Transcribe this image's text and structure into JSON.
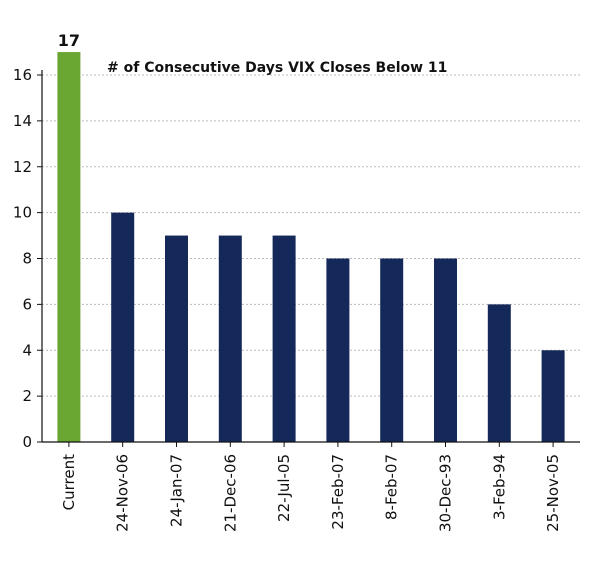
{
  "chart_data": {
    "type": "bar",
    "title": "# of Consecutive Days VIX Closes Below 11",
    "categories": [
      "Current",
      "24-Nov-06",
      "24-Jan-07",
      "21-Dec-06",
      "22-Jul-05",
      "23-Feb-07",
      "8-Feb-07",
      "30-Dec-93",
      "3-Feb-94",
      "25-Nov-05"
    ],
    "values": [
      17,
      10,
      9,
      9,
      9,
      8,
      8,
      8,
      6,
      4
    ],
    "data_labels": [
      "17",
      "",
      "",
      "",
      "",
      "",
      "",
      "",
      "",
      ""
    ],
    "xlabel": "",
    "ylabel": "",
    "ylim": [
      0,
      16
    ],
    "yticks": [
      0,
      2,
      4,
      6,
      8,
      10,
      12,
      14,
      16
    ],
    "grid": true,
    "colors": {
      "highlight": "#6aa632",
      "bars": "#14285a",
      "grid": "#bbbbbb",
      "axis": "#111111"
    }
  }
}
